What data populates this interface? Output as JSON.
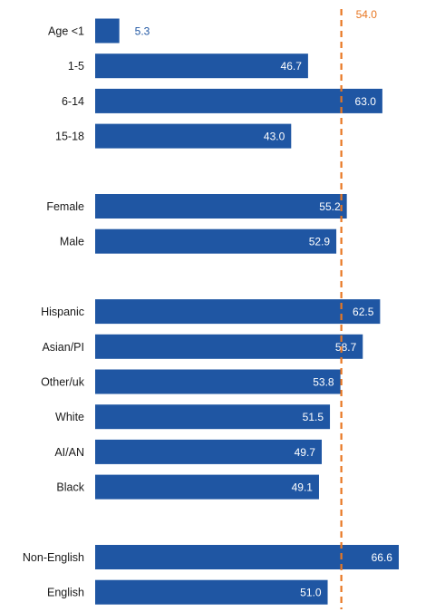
{
  "chart_data": {
    "type": "bar",
    "orientation": "horizontal",
    "bar_color": "#1f56a3",
    "reference_line": {
      "value": 54.0,
      "label": "54.0",
      "color": "#e87722",
      "style": "dashed"
    },
    "groups": [
      {
        "categories": [
          "Age <1",
          "1-5",
          "6-14",
          "15-18"
        ],
        "values": [
          5.3,
          46.7,
          63.0,
          43.0
        ],
        "value_labels": [
          "5.3",
          "46.7",
          "63.0",
          "43.0"
        ]
      },
      {
        "categories": [
          "Female",
          "Male"
        ],
        "values": [
          55.2,
          52.9
        ],
        "value_labels": [
          "55.2",
          "52.9"
        ]
      },
      {
        "categories": [
          "Hispanic",
          "Asian/PI",
          "Other/uk",
          "White",
          "AI/AN",
          "Black"
        ],
        "values": [
          62.5,
          58.7,
          53.8,
          51.5,
          49.7,
          49.1
        ],
        "value_labels": [
          "62.5",
          "58.7",
          "53.8",
          "51.5",
          "49.7",
          "49.1"
        ]
      },
      {
        "categories": [
          "Non-English",
          "English"
        ],
        "values": [
          66.6,
          51.0
        ],
        "value_labels": [
          "66.6",
          "51.0"
        ]
      }
    ],
    "xlim": [
      0,
      66.6
    ],
    "grid": false,
    "legend": "none"
  }
}
